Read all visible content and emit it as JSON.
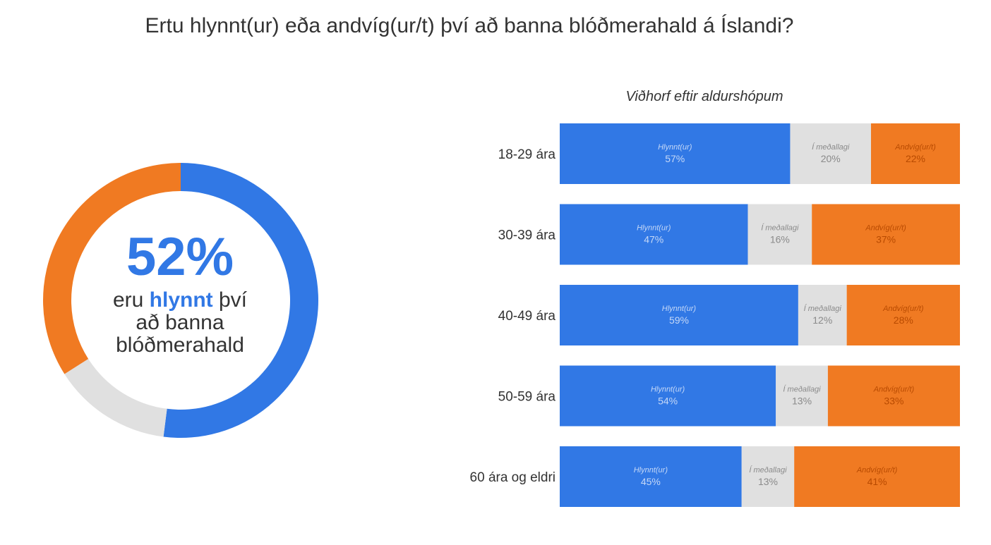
{
  "title": "Ertu hlynnt(ur) eða andvíg(ur/t) því að banna blóðmerahald á Íslandi?",
  "donut": {
    "big_value": "52%",
    "line1_pre": "eru",
    "line1_highlight": "hlynnt",
    "line1_post": "því",
    "line2": "að banna",
    "line3": "blóðmerahald"
  },
  "colors": {
    "favor": "#3178e5",
    "neutral": "#e0e0e0",
    "against": "#f07a22",
    "favor_text": "#c5d8f7",
    "neutral_text": "#8a8a8a",
    "against_text": "#b84a00"
  },
  "chart_data": [
    {
      "type": "pie",
      "categories": [
        "Hlynnt(ur)",
        "Í meðallagi",
        "Andvíg(ur/t)"
      ],
      "values": [
        52,
        14,
        34
      ]
    },
    {
      "type": "bar",
      "stacked": true,
      "orientation": "horizontal",
      "title": "Viðhorf eftir aldurshópum",
      "categories": [
        "18-29 ára",
        "30-39 ára",
        "40-49 ára",
        "50-59 ára",
        "60 ára og eldri"
      ],
      "series": [
        {
          "name": "Hlynnt(ur)",
          "values": [
            57,
            47,
            59,
            54,
            45
          ]
        },
        {
          "name": "Í meðallagi",
          "values": [
            20,
            16,
            12,
            13,
            13
          ]
        },
        {
          "name": "Andvíg(ur/t)",
          "values": [
            22,
            37,
            28,
            33,
            41
          ]
        }
      ]
    }
  ]
}
